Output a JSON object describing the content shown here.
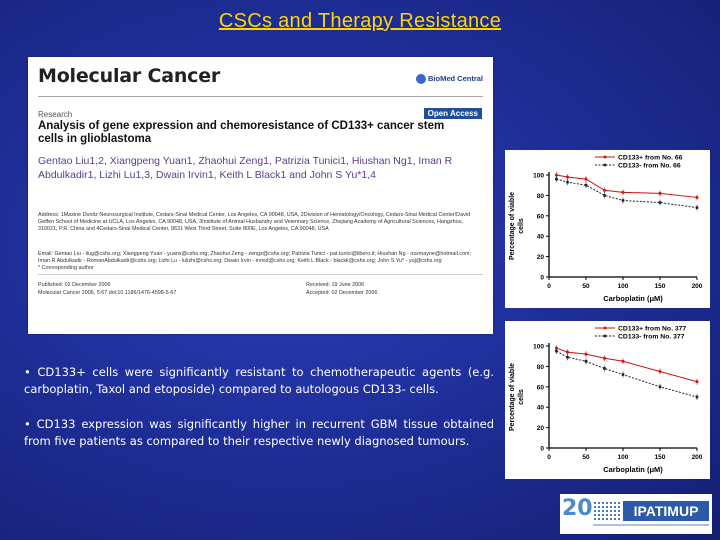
{
  "slide": {
    "title": "CSCs and Therapy Resistance"
  },
  "paper": {
    "journal": "Molecular Cancer",
    "publisher_logo": "BioMed Central",
    "section": "Research",
    "open_access": "Open Access",
    "title": "Analysis of gene expression and chemoresistance of CD133+ cancer stem cells in glioblastoma",
    "authors": "Gentao Liu1,2, Xiangpeng Yuan1, Zhaohui Zeng1, Patrizia Tunici1, Hiushan Ng1, Iman R Abdulkadir1, Lizhi Lu1,3, Dwain Irvin1, Keith L Black1 and John S Yu*1,4",
    "affiliations": "Address: 1Maxine Dunitz Neurosurgical Institute, Cedars-Sinai Medical Center, Los Angeles, CA 90048, USA, 2Division of Hematology/Oncology, Cedars-Sinai Medical Center/David Geffen School of Medicine at UCLA, Los Angeles, CA 90048, USA, 3Institute of Animal Husbandry and Veterinary Science, Zhejiang Academy of Agricultural Sciences, Hangzhou, 310021, P.R. China and 4Cedars-Sinai Medical Center, 8631 West Third Street, Suite 800E, Los Angeles, CA 90048, USA",
    "emails": "Email: Gentao Liu - liug@cshs.org; Xiangpeng Yuan - yuanx@cshs.org; Zhaohui Zeng - zengz@cshs.org; Patrizia Tunici - pat.tunici@libero.it; Hiushan Ng - nsxmayne@hotmail.com; Iman R Abdulkadir - RomanAbdulkadir@cshs.org; Lizhi Lu - lulizhi@cshs.org; Dwain Irvin - irvind@cshs.org; Keith L Black - blackk@cshs.org; John S Yu* - yuj@cshs.org",
    "corresponding": "* Corresponding author",
    "published": "Published: 02 December 2006",
    "citation": "Molecular Cancer 2006, 5:67   doi:10.1186/1476-4598-5-67",
    "received": "Received: 19 June 2006",
    "accepted": "Accepted: 02 December 2006"
  },
  "bullets": [
    "• CD133+ cells were significantly resistant to chemotherapeutic agents (e.g. carboplatin, Taxol and etoposide) compared to autologous CD133- cells.",
    "• CD133 expression was significantly higher in recurrent GBM tissue obtained from five patients as compared to their respective newly diagnosed tumours."
  ],
  "chart_data": [
    {
      "type": "line",
      "xlabel": "Carboplatin (μM)",
      "ylabel": "Percentage of viable cells",
      "xlim": [
        0,
        200
      ],
      "ylim": [
        0,
        100
      ],
      "xticks": [
        "0",
        "50",
        "100",
        "150",
        "200"
      ],
      "yticks": [
        "0",
        "20",
        "40",
        "60",
        "80",
        "100"
      ],
      "legend_position": "top-right",
      "x": [
        10,
        25,
        50,
        75,
        100,
        150,
        200
      ],
      "series": [
        {
          "name": "CD133+ from No. 66",
          "values": [
            100,
            98,
            96,
            85,
            83,
            82,
            78
          ],
          "color": "#cc1111",
          "dash": false
        },
        {
          "name": "CD133-  from No. 66",
          "values": [
            96,
            93,
            90,
            80,
            75,
            73,
            68
          ],
          "color": "#222222",
          "dash": true
        }
      ]
    },
    {
      "type": "line",
      "xlabel": "Carboplatin (μM)",
      "ylabel": "Percentage of viable cells",
      "xlim": [
        0,
        200
      ],
      "ylim": [
        0,
        100
      ],
      "xticks": [
        "0",
        "50",
        "100",
        "150",
        "200"
      ],
      "yticks": [
        "0",
        "20",
        "40",
        "60",
        "80",
        "100"
      ],
      "legend_position": "top-right",
      "x": [
        10,
        25,
        50,
        75,
        100,
        150,
        200
      ],
      "series": [
        {
          "name": "CD133+ from No. 377",
          "values": [
            98,
            94,
            92,
            88,
            85,
            75,
            65
          ],
          "color": "#cc1111",
          "dash": false
        },
        {
          "name": "CD133-  from No. 377",
          "values": [
            95,
            89,
            85,
            78,
            72,
            60,
            50
          ],
          "color": "#222222",
          "dash": true
        }
      ]
    }
  ],
  "footer": {
    "number": "20",
    "logo": "IPATIMUP"
  }
}
